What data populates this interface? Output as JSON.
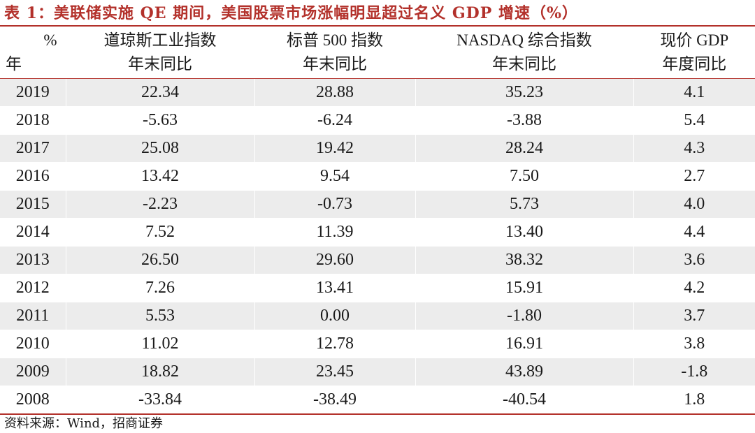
{
  "title": "表 1：美联储实施 QE 期间，美国股票市场涨幅明显超过名义 GDP 增速（%）",
  "table": {
    "corner_top": "%",
    "corner_bottom": "年",
    "headers": [
      {
        "line1": "道琼斯工业指数",
        "line2": "年末同比"
      },
      {
        "line1": "标普 500 指数",
        "line2": "年末同比"
      },
      {
        "line1": "NASDAQ 综合指数",
        "line2": "年末同比"
      },
      {
        "line1": "现价 GDP",
        "line2": "年度同比"
      }
    ],
    "rows": [
      {
        "year": "2019",
        "dow": "22.34",
        "sp500": "28.88",
        "nasdaq": "35.23",
        "gdp": "4.1"
      },
      {
        "year": "2018",
        "dow": "-5.63",
        "sp500": "-6.24",
        "nasdaq": "-3.88",
        "gdp": "5.4"
      },
      {
        "year": "2017",
        "dow": "25.08",
        "sp500": "19.42",
        "nasdaq": "28.24",
        "gdp": "4.3"
      },
      {
        "year": "2016",
        "dow": "13.42",
        "sp500": "9.54",
        "nasdaq": "7.50",
        "gdp": "2.7"
      },
      {
        "year": "2015",
        "dow": "-2.23",
        "sp500": "-0.73",
        "nasdaq": "5.73",
        "gdp": "4.0"
      },
      {
        "year": "2014",
        "dow": "7.52",
        "sp500": "11.39",
        "nasdaq": "13.40",
        "gdp": "4.4"
      },
      {
        "year": "2013",
        "dow": "26.50",
        "sp500": "29.60",
        "nasdaq": "38.32",
        "gdp": "3.6"
      },
      {
        "year": "2012",
        "dow": "7.26",
        "sp500": "13.41",
        "nasdaq": "15.91",
        "gdp": "4.2"
      },
      {
        "year": "2011",
        "dow": "5.53",
        "sp500": "0.00",
        "nasdaq": "-1.80",
        "gdp": "3.7"
      },
      {
        "year": "2010",
        "dow": "11.02",
        "sp500": "12.78",
        "nasdaq": "16.91",
        "gdp": "3.8"
      },
      {
        "year": "2009",
        "dow": "18.82",
        "sp500": "23.45",
        "nasdaq": "43.89",
        "gdp": "-1.8"
      },
      {
        "year": "2008",
        "dow": "-33.84",
        "sp500": "-38.49",
        "nasdaq": "-40.54",
        "gdp": "1.8"
      }
    ]
  },
  "source": "资料来源：Wind，招商证券",
  "colors": {
    "accent": "#b3312b",
    "stripe": "#ececec"
  }
}
